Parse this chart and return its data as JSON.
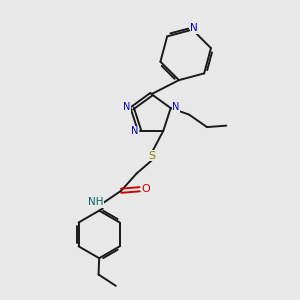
{
  "bg_color": "#e8e8e8",
  "bond_color": "#1a1a1a",
  "n_color": "#0000cc",
  "o_color": "#cc0000",
  "s_color": "#888800",
  "nh_color": "#006666",
  "font_size": 7.0,
  "bond_width": 1.4,
  "xlim": [
    0,
    10
  ],
  "ylim": [
    0,
    10
  ]
}
